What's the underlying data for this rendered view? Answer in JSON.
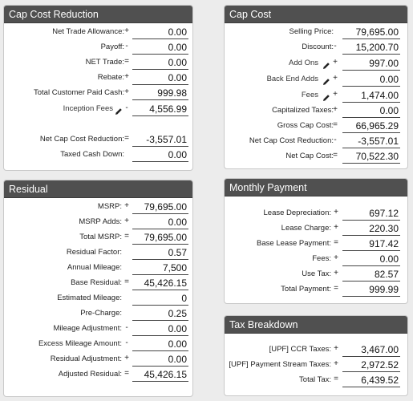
{
  "cap_cost_reduction": {
    "title": "Cap Cost Reduction",
    "rows": [
      {
        "label": "Net Trade Allowance:",
        "op": "+",
        "value": "0.00"
      },
      {
        "label": "Payoff:",
        "op": "-",
        "value": "0.00"
      },
      {
        "label": "NET Trade:",
        "op": "=",
        "value": "0.00"
      },
      {
        "label": "Rebate:",
        "op": "+",
        "value": "0.00"
      },
      {
        "label": "Total Customer Paid Cash:",
        "op": "+",
        "value": "999.98"
      },
      {
        "label": "Inception Fees",
        "op": "-",
        "value": "4,556.99"
      },
      {
        "label": "Net Cap Cost Reduction:",
        "op": "=",
        "value": "-3,557.01"
      },
      {
        "label": "Taxed Cash Down:",
        "op": "",
        "value": "0.00"
      }
    ]
  },
  "residual": {
    "title": "Residual",
    "rows": [
      {
        "label": "MSRP:",
        "op": "+",
        "value": "79,695.00"
      },
      {
        "label": "MSRP Adds:",
        "op": "+",
        "value": "0.00"
      },
      {
        "label": "Total MSRP:",
        "op": "=",
        "value": "79,695.00"
      },
      {
        "label": "Residual Factor:",
        "op": "",
        "value": "0.57"
      },
      {
        "label": "Annual Mileage:",
        "op": "",
        "value": "7,500"
      },
      {
        "label": "Base Residual:",
        "op": "=",
        "value": "45,426.15"
      },
      {
        "label": "Estimated Mileage:",
        "op": "",
        "value": "0"
      },
      {
        "label": "Pre-Charge:",
        "op": "",
        "value": "0.25"
      },
      {
        "label": "Mileage Adjustment:",
        "op": "-",
        "value": "0.00"
      },
      {
        "label": "Excess Mileage Amount:",
        "op": "-",
        "value": "0.00"
      },
      {
        "label": "Residual Adjustment:",
        "op": "+",
        "value": "0.00"
      },
      {
        "label": "Adjusted Residual:",
        "op": "=",
        "value": "45,426.15"
      }
    ]
  },
  "cap_cost": {
    "title": "Cap Cost",
    "rows": [
      {
        "label": "Selling Price:",
        "op": "",
        "value": "79,695.00"
      },
      {
        "label": "Discount:",
        "op": "-",
        "value": "15,200.70"
      },
      {
        "label": "Add Ons",
        "op": "+",
        "value": "997.00"
      },
      {
        "label": "Back End Adds",
        "op": "+",
        "value": "0.00"
      },
      {
        "label": "Fees",
        "op": "+",
        "value": "1,474.00"
      },
      {
        "label": "Capitalized Taxes:",
        "op": "+",
        "value": "0.00"
      },
      {
        "label": "Gross Cap Cost:",
        "op": "=",
        "value": "66,965.29"
      },
      {
        "label": "Net Cap Cost Reduction:",
        "op": "-",
        "value": "-3,557.01"
      },
      {
        "label": "Net Cap Cost:",
        "op": "=",
        "value": "70,522.30"
      }
    ]
  },
  "monthly_payment": {
    "title": "Monthly Payment",
    "rows": [
      {
        "label": "Lease Depreciation:",
        "op": "+",
        "value": "697.12"
      },
      {
        "label": "Lease Charge:",
        "op": "+",
        "value": "220.30"
      },
      {
        "label": "Base Lease Payment:",
        "op": "=",
        "value": "917.42"
      },
      {
        "label": "Fees:",
        "op": "+",
        "value": "0.00"
      },
      {
        "label": "Use Tax:",
        "op": "+",
        "value": "82.57"
      },
      {
        "label": "Total Payment:",
        "op": "=",
        "value": "999.99"
      }
    ]
  },
  "tax_breakdown": {
    "title": "Tax Breakdown",
    "rows": [
      {
        "label": "[UPF] CCR Taxes:",
        "op": "+",
        "value": "3,467.00"
      },
      {
        "label": "[UPF] Payment Stream Taxes:",
        "op": "+",
        "value": "2,972.52"
      },
      {
        "label": "Total Tax:",
        "op": "=",
        "value": "6,439.52"
      }
    ]
  },
  "icons": {
    "edit": "pencil-icon"
  }
}
